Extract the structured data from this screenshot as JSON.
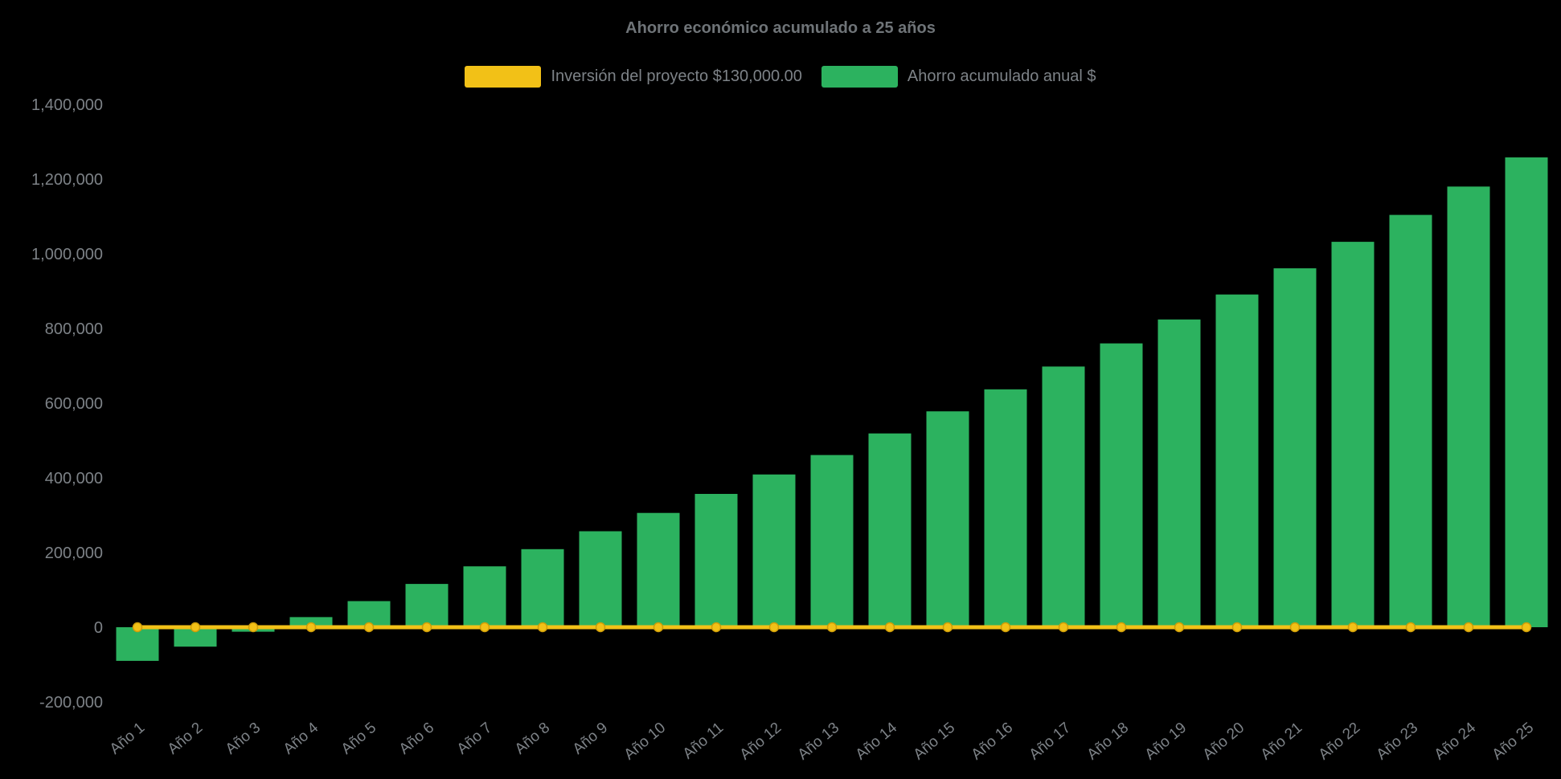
{
  "page": {
    "background": "#000000"
  },
  "chart_data": {
    "type": "bar",
    "title": "Ahorro económico acumulado a 25 años",
    "background": "#000000",
    "title_color": "#6f7478",
    "text_color": "#7d8287",
    "legend_position": "top",
    "grid": false,
    "xlabel": "",
    "ylabel": "",
    "ylim": [
      -200000,
      1400000
    ],
    "categories": [
      "Año 1",
      "Año 2",
      "Año 3",
      "Año 4",
      "Año 5",
      "Año 6",
      "Año 7",
      "Año 8",
      "Año 9",
      "Año 10",
      "Año 11",
      "Año 12",
      "Año 13",
      "Año 14",
      "Año 15",
      "Año 16",
      "Año 17",
      "Año 18",
      "Año 19",
      "Año 20",
      "Año 21",
      "Año 22",
      "Año 23",
      "Año 24",
      "Año 25"
    ],
    "series": [
      {
        "name": "Inversión del proyecto $130,000.00",
        "type": "line",
        "color": "#F2C117",
        "marker_stroke": "#CF9D08",
        "values": [
          0,
          0,
          0,
          0,
          0,
          0,
          0,
          0,
          0,
          0,
          0,
          0,
          0,
          0,
          0,
          0,
          0,
          0,
          0,
          0,
          0,
          0,
          0,
          0,
          0
        ]
      },
      {
        "name": "Ahorro acumulado anual $",
        "type": "bar",
        "color": "#2CB25F",
        "values": [
          -90000,
          -52000,
          -12000,
          27000,
          70000,
          116000,
          163000,
          209000,
          257000,
          306000,
          357000,
          409000,
          461000,
          519000,
          578000,
          637000,
          698000,
          760000,
          824000,
          891000,
          961000,
          1032000,
          1104000,
          1180000,
          1258000
        ]
      }
    ],
    "y_ticks": [
      {
        "value": 1400000,
        "label": "1,400,000"
      },
      {
        "value": 1200000,
        "label": "1,200,000"
      },
      {
        "value": 1000000,
        "label": "1,000,000"
      },
      {
        "value": 800000,
        "label": "800,000"
      },
      {
        "value": 600000,
        "label": "600,000"
      },
      {
        "value": 400000,
        "label": "400,000"
      },
      {
        "value": 200000,
        "label": "200,000"
      },
      {
        "value": 0,
        "label": "0"
      },
      {
        "value": -200000,
        "label": "-200,000"
      }
    ]
  }
}
